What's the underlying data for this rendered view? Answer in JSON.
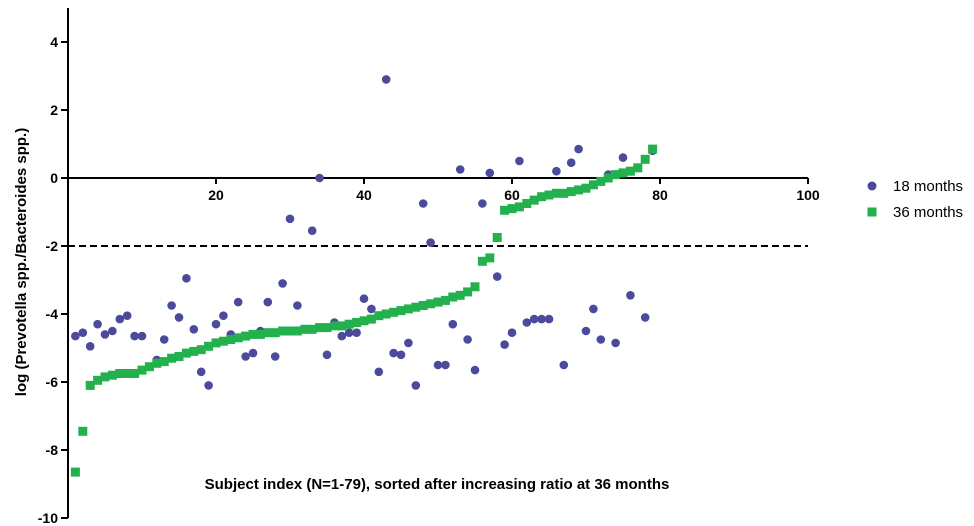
{
  "chart_data": {
    "type": "scatter",
    "title": "",
    "xlabel": "",
    "ylabel": "log (Prevotella spp./Bacteroides spp.)",
    "annotation": "Subject index (N=1-79), sorted after increasing ratio at 36 months",
    "xlim": [
      0,
      100
    ],
    "ylim": [
      -10,
      5
    ],
    "x_ticks": [
      20,
      40,
      60,
      80,
      100
    ],
    "y_ticks": [
      -10,
      -8,
      -6,
      -4,
      -2,
      0,
      2,
      4
    ],
    "threshold_line": -2,
    "legend_position": "right",
    "series": [
      {
        "name": "18 months",
        "marker": "circle",
        "color": "#4b4a9b",
        "points": [
          [
            1,
            -4.65
          ],
          [
            2,
            -4.55
          ],
          [
            3,
            -4.95
          ],
          [
            4,
            -4.3
          ],
          [
            5,
            -4.6
          ],
          [
            6,
            -4.5
          ],
          [
            7,
            -4.15
          ],
          [
            8,
            -4.05
          ],
          [
            9,
            -4.65
          ],
          [
            10,
            -4.65
          ],
          [
            12,
            -5.35
          ],
          [
            13,
            -4.75
          ],
          [
            14,
            -3.75
          ],
          [
            15,
            -4.1
          ],
          [
            16,
            -2.95
          ],
          [
            17,
            -4.45
          ],
          [
            18,
            -5.7
          ],
          [
            19,
            -6.1
          ],
          [
            20,
            -4.3
          ],
          [
            21,
            -4.05
          ],
          [
            22,
            -4.6
          ],
          [
            23,
            -3.65
          ],
          [
            24,
            -5.25
          ],
          [
            25,
            -5.15
          ],
          [
            26,
            -4.5
          ],
          [
            27,
            -3.65
          ],
          [
            28,
            -5.25
          ],
          [
            29,
            -3.1
          ],
          [
            30,
            -1.2
          ],
          [
            31,
            -3.75
          ],
          [
            33,
            -1.55
          ],
          [
            34,
            0.0
          ],
          [
            35,
            -5.2
          ],
          [
            36,
            -4.25
          ],
          [
            37,
            -4.65
          ],
          [
            38,
            -4.55
          ],
          [
            39,
            -4.55
          ],
          [
            40,
            -3.55
          ],
          [
            41,
            -3.85
          ],
          [
            42,
            -5.7
          ],
          [
            43,
            2.9
          ],
          [
            44,
            -5.15
          ],
          [
            45,
            -5.2
          ],
          [
            46,
            -4.85
          ],
          [
            47,
            -6.1
          ],
          [
            48,
            -0.75
          ],
          [
            49,
            -1.9
          ],
          [
            50,
            -5.5
          ],
          [
            51,
            -5.5
          ],
          [
            52,
            -4.3
          ],
          [
            53,
            0.25
          ],
          [
            54,
            -4.75
          ],
          [
            55,
            -5.65
          ],
          [
            56,
            -0.75
          ],
          [
            57,
            0.15
          ],
          [
            58,
            -2.9
          ],
          [
            59,
            -4.9
          ],
          [
            60,
            -4.55
          ],
          [
            61,
            0.5
          ],
          [
            62,
            -4.25
          ],
          [
            63,
            -4.15
          ],
          [
            64,
            -4.15
          ],
          [
            65,
            -4.15
          ],
          [
            66,
            0.2
          ],
          [
            67,
            -5.5
          ],
          [
            68,
            0.45
          ],
          [
            69,
            0.85
          ],
          [
            70,
            -4.5
          ],
          [
            71,
            -3.85
          ],
          [
            72,
            -4.75
          ],
          [
            73,
            0.1
          ],
          [
            74,
            -4.85
          ],
          [
            75,
            0.6
          ],
          [
            76,
            -3.45
          ],
          [
            78,
            -4.1
          ],
          [
            79,
            0.8
          ]
        ]
      },
      {
        "name": "36 months",
        "marker": "square",
        "color": "#22b14c",
        "points": [
          [
            1,
            -8.65
          ],
          [
            2,
            -7.45
          ],
          [
            3,
            -6.1
          ],
          [
            4,
            -5.95
          ],
          [
            5,
            -5.85
          ],
          [
            6,
            -5.8
          ],
          [
            7,
            -5.75
          ],
          [
            8,
            -5.75
          ],
          [
            9,
            -5.75
          ],
          [
            10,
            -5.65
          ],
          [
            11,
            -5.55
          ],
          [
            12,
            -5.45
          ],
          [
            13,
            -5.4
          ],
          [
            14,
            -5.3
          ],
          [
            15,
            -5.25
          ],
          [
            16,
            -5.15
          ],
          [
            17,
            -5.1
          ],
          [
            18,
            -5.05
          ],
          [
            19,
            -4.95
          ],
          [
            20,
            -4.85
          ],
          [
            21,
            -4.8
          ],
          [
            22,
            -4.75
          ],
          [
            23,
            -4.7
          ],
          [
            24,
            -4.65
          ],
          [
            25,
            -4.6
          ],
          [
            26,
            -4.6
          ],
          [
            27,
            -4.55
          ],
          [
            28,
            -4.55
          ],
          [
            29,
            -4.5
          ],
          [
            30,
            -4.5
          ],
          [
            31,
            -4.5
          ],
          [
            32,
            -4.45
          ],
          [
            33,
            -4.45
          ],
          [
            34,
            -4.4
          ],
          [
            35,
            -4.4
          ],
          [
            36,
            -4.35
          ],
          [
            37,
            -4.35
          ],
          [
            38,
            -4.3
          ],
          [
            39,
            -4.25
          ],
          [
            40,
            -4.2
          ],
          [
            41,
            -4.15
          ],
          [
            42,
            -4.05
          ],
          [
            43,
            -4.0
          ],
          [
            44,
            -3.95
          ],
          [
            45,
            -3.9
          ],
          [
            46,
            -3.85
          ],
          [
            47,
            -3.8
          ],
          [
            48,
            -3.75
          ],
          [
            49,
            -3.7
          ],
          [
            50,
            -3.65
          ],
          [
            51,
            -3.6
          ],
          [
            52,
            -3.5
          ],
          [
            53,
            -3.45
          ],
          [
            54,
            -3.35
          ],
          [
            55,
            -3.2
          ],
          [
            56,
            -2.45
          ],
          [
            57,
            -2.35
          ],
          [
            58,
            -1.75
          ],
          [
            59,
            -0.95
          ],
          [
            60,
            -0.9
          ],
          [
            61,
            -0.85
          ],
          [
            62,
            -0.75
          ],
          [
            63,
            -0.65
          ],
          [
            64,
            -0.55
          ],
          [
            65,
            -0.5
          ],
          [
            66,
            -0.45
          ],
          [
            67,
            -0.45
          ],
          [
            68,
            -0.4
          ],
          [
            69,
            -0.35
          ],
          [
            70,
            -0.3
          ],
          [
            71,
            -0.2
          ],
          [
            72,
            -0.1
          ],
          [
            73,
            0.0
          ],
          [
            74,
            0.1
          ],
          [
            75,
            0.15
          ],
          [
            76,
            0.2
          ],
          [
            77,
            0.3
          ],
          [
            78,
            0.55
          ],
          [
            79,
            0.85
          ]
        ]
      }
    ]
  }
}
